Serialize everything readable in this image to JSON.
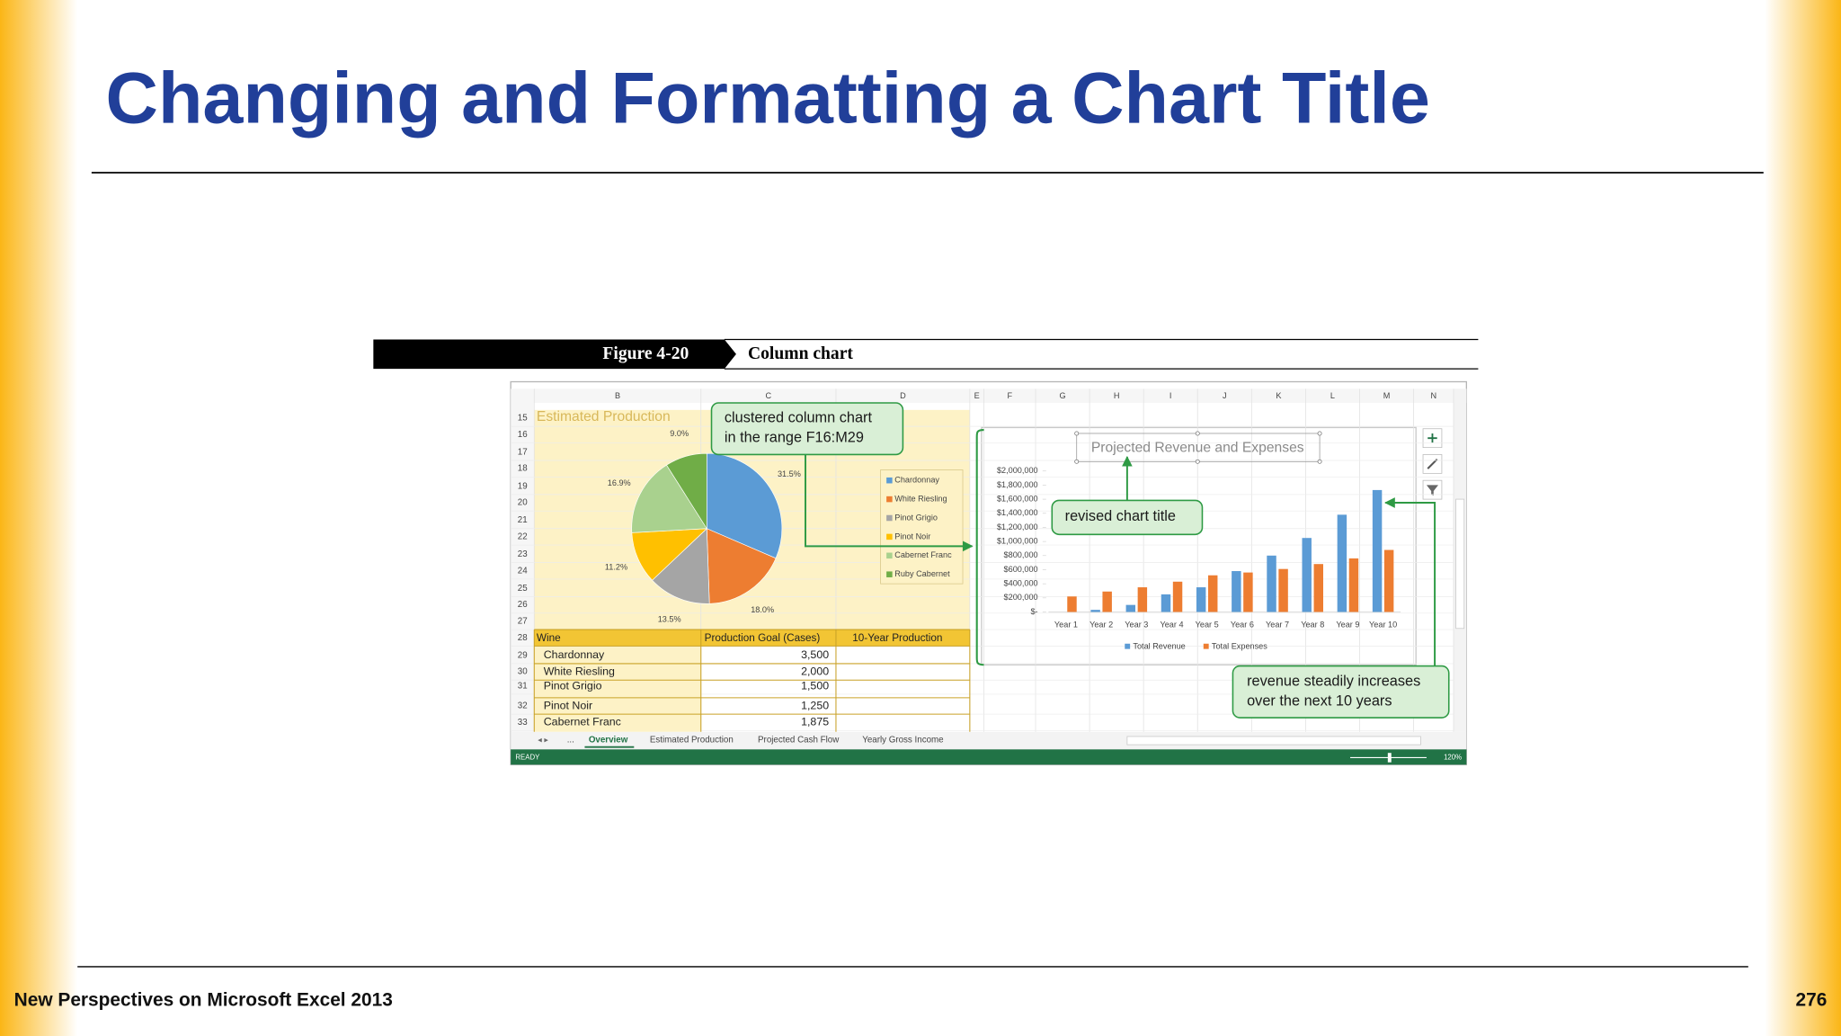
{
  "slide": {
    "title": "Changing and Formatting a Chart Title",
    "footer": "New Perspectives on Microsoft Excel 2013",
    "page_number": "276"
  },
  "figure": {
    "label": "Figure 4-20",
    "caption": "Column chart"
  },
  "sheet": {
    "columns": [
      "B",
      "C",
      "D",
      "E",
      "F",
      "G",
      "H",
      "I",
      "J",
      "K",
      "L",
      "M",
      "N"
    ],
    "rows": [
      15,
      16,
      17,
      18,
      19,
      20,
      21,
      22,
      23,
      24,
      25,
      26,
      27,
      28,
      29,
      30,
      31,
      32,
      33
    ],
    "range_title": "Estimated Production",
    "table": {
      "headers": [
        "Wine",
        "Production Goal (Cases)",
        "10-Year Production"
      ],
      "rows": [
        [
          "Chardonnay",
          "3,500"
        ],
        [
          "White Riesling",
          "2,000"
        ],
        [
          "Pinot Grigio",
          "1,500"
        ],
        [
          "Pinot Noir",
          "1,250"
        ],
        [
          "Cabernet Franc",
          "1,875"
        ]
      ]
    },
    "nav_ellipsis": "...",
    "tabs": [
      "Overview",
      "Estimated Production",
      "Projected Cash Flow",
      "Yearly Gross Income"
    ],
    "status": "READY",
    "zoom": "120%"
  },
  "charts": [
    {
      "type": "pie",
      "categories": [
        "Chardonnay",
        "White Riesling",
        "Pinot Grigio",
        "Pinot Noir",
        "Cabernet Franc",
        "Ruby Cabernet"
      ],
      "values": [
        31.5,
        18,
        13.5,
        11.2,
        16.9,
        9
      ],
      "value_labels": [
        "31.5%",
        "18.0%",
        "13.5%",
        "11.2%",
        "16.9%",
        "9.0%"
      ],
      "colors": [
        "#5b9bd5",
        "#ed7d31",
        "#a5a5a5",
        "#ffc000",
        "#a9d18e",
        "#70ad47"
      ]
    },
    {
      "type": "bar",
      "title": "Projected Revenue and Expenses",
      "categories": [
        "Year 1",
        "Year 2",
        "Year 3",
        "Year 4",
        "Year 5",
        "Year 6",
        "Year 7",
        "Year 8",
        "Year 9",
        "Year 10"
      ],
      "series": [
        {
          "name": "Total Revenue",
          "color": "#5b9bd5",
          "values": [
            0,
            30000,
            100000,
            250000,
            350000,
            580000,
            800000,
            1050000,
            1380000,
            1730000
          ]
        },
        {
          "name": "Total Expenses",
          "color": "#ed7d31",
          "values": [
            220000,
            290000,
            350000,
            430000,
            520000,
            560000,
            610000,
            680000,
            760000,
            880000
          ]
        }
      ],
      "ylim": [
        0,
        2000000
      ],
      "yticks": [
        {
          "value": 0,
          "label": "$-"
        },
        {
          "value": 200000,
          "label": "$200,000"
        },
        {
          "value": 400000,
          "label": "$400,000"
        },
        {
          "value": 600000,
          "label": "$600,000"
        },
        {
          "value": 800000,
          "label": "$800,000"
        },
        {
          "value": 1000000,
          "label": "$1,000,000"
        },
        {
          "value": 1200000,
          "label": "$1,200,000"
        },
        {
          "value": 1400000,
          "label": "$1,400,000"
        },
        {
          "value": 1600000,
          "label": "$1,600,000"
        },
        {
          "value": 1800000,
          "label": "$1,800,000"
        },
        {
          "value": 2000000,
          "label": "$2,000,000"
        }
      ]
    }
  ],
  "callouts": [
    {
      "lines": [
        "clustered column chart",
        "in the range F16:M29"
      ]
    },
    {
      "lines": [
        "revised chart title"
      ]
    },
    {
      "lines": [
        "revenue steadily increases",
        "over the next 10 years"
      ]
    }
  ]
}
